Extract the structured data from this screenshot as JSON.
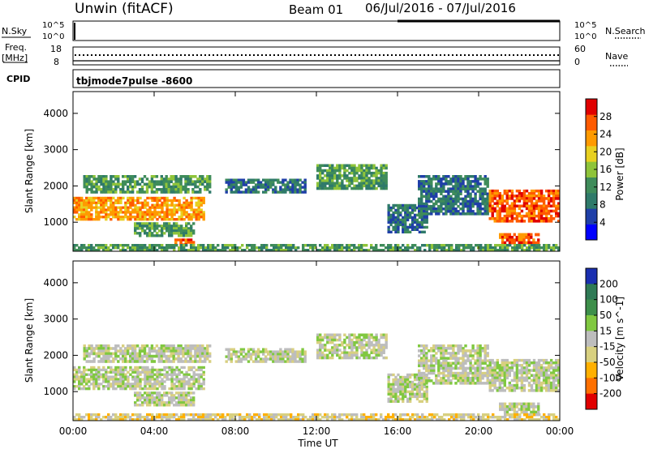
{
  "header": {
    "station": "Unwin (fitACF)",
    "beam": "Beam 01",
    "date_range": "06/Jul/2016 - 07/Jul/2016"
  },
  "left_labels": {
    "nsky": "N.Sky",
    "freq_line1": "Freq.",
    "freq_line2": "[MHz]",
    "cpid": "CPID"
  },
  "right_labels": {
    "nsearch": "N.Search",
    "nave": "Nave"
  },
  "cpid_value": "tbjmode7pulse -8600",
  "noise_panel": {
    "left_ticks": [
      "10^5",
      "10^0"
    ],
    "right_ticks": [
      "10^5",
      "10^0"
    ]
  },
  "freq_panel": {
    "left_ticks": [
      "18",
      "8"
    ],
    "right_ticks": [
      "60",
      "0"
    ]
  },
  "colors": {
    "power_scale": [
      "#0000ff",
      "#1f3fa8",
      "#2f7a6a",
      "#3f8c5a",
      "#8fc43a",
      "#e8d020",
      "#ff9a00",
      "#ff5a00",
      "#e00000"
    ],
    "velocity_scale": [
      "#1a2fb0",
      "#2f7a55",
      "#3d8f4a",
      "#80c840",
      "#bdbdbd",
      "#d8d080",
      "#ffb000",
      "#ff7000",
      "#e00000"
    ]
  },
  "chart_data": [
    {
      "type": "heatmap",
      "title": "",
      "xlabel": "Time UT",
      "ylabel": "Slant Range [km]",
      "x_ticks": [
        "00:00",
        "04:00",
        "08:00",
        "12:00",
        "16:00",
        "20:00",
        "00:00"
      ],
      "xlim_hours": [
        0,
        24
      ],
      "y_ticks": [
        "1000",
        "2000",
        "3000",
        "4000"
      ],
      "ylim": [
        200,
        4600
      ],
      "colorbar": {
        "label": "Power [dB]",
        "ticks": [
          "4",
          "8",
          "12",
          "16",
          "20",
          "24",
          "28"
        ],
        "range": [
          0,
          32
        ]
      },
      "echo_regions": [
        {
          "t0": 0.0,
          "t1": 6.5,
          "r0": 1050,
          "r1": 1700,
          "level": 24
        },
        {
          "t0": 0.5,
          "t1": 6.8,
          "r0": 1800,
          "r1": 2300,
          "level": 12
        },
        {
          "t0": 3.0,
          "t1": 6.0,
          "r0": 600,
          "r1": 1000,
          "level": 14
        },
        {
          "t0": 5.0,
          "t1": 6.0,
          "r0": 350,
          "r1": 550,
          "level": 26
        },
        {
          "t0": 7.5,
          "t1": 11.5,
          "r0": 1800,
          "r1": 2200,
          "level": 10
        },
        {
          "t0": 12.0,
          "t1": 15.5,
          "r0": 1900,
          "r1": 2600,
          "level": 12
        },
        {
          "t0": 15.5,
          "t1": 17.5,
          "r0": 700,
          "r1": 1500,
          "level": 10
        },
        {
          "t0": 17.0,
          "t1": 20.5,
          "r0": 1200,
          "r1": 2300,
          "level": 9
        },
        {
          "t0": 20.5,
          "t1": 24.0,
          "r0": 1000,
          "r1": 1900,
          "level": 26
        },
        {
          "t0": 21.0,
          "t1": 23.0,
          "r0": 400,
          "r1": 700,
          "level": 27
        },
        {
          "t0": 0.0,
          "t1": 24.0,
          "r0": 200,
          "r1": 400,
          "level": 14
        }
      ]
    },
    {
      "type": "heatmap",
      "title": "",
      "xlabel": "Time UT",
      "ylabel": "Slant Range [km]",
      "x_ticks": [
        "00:00",
        "04:00",
        "08:00",
        "12:00",
        "16:00",
        "20:00",
        "00:00"
      ],
      "xlim_hours": [
        0,
        24
      ],
      "y_ticks": [
        "1000",
        "2000",
        "3000",
        "4000"
      ],
      "ylim": [
        200,
        4600
      ],
      "colorbar": {
        "label": "Velocity [m s^-1]",
        "ticks": [
          "200",
          "100",
          "50",
          "15",
          "-15",
          "-50",
          "-100",
          "-200"
        ],
        "range": [
          -250,
          250
        ]
      },
      "echo_regions": [
        {
          "t0": 0.0,
          "t1": 6.5,
          "r0": 1050,
          "r1": 1700,
          "level": 0
        },
        {
          "t0": 0.5,
          "t1": 6.8,
          "r0": 1800,
          "r1": 2300,
          "level": 0
        },
        {
          "t0": 3.0,
          "t1": 6.0,
          "r0": 600,
          "r1": 1000,
          "level": 0
        },
        {
          "t0": 7.5,
          "t1": 11.5,
          "r0": 1800,
          "r1": 2200,
          "level": 20
        },
        {
          "t0": 12.0,
          "t1": 15.5,
          "r0": 1900,
          "r1": 2600,
          "level": 30
        },
        {
          "t0": 15.5,
          "t1": 17.5,
          "r0": 700,
          "r1": 1500,
          "level": 0
        },
        {
          "t0": 17.0,
          "t1": 20.5,
          "r0": 1200,
          "r1": 2300,
          "level": 20
        },
        {
          "t0": 20.5,
          "t1": 24.0,
          "r0": 1000,
          "r1": 1900,
          "level": 0
        },
        {
          "t0": 21.0,
          "t1": 23.0,
          "r0": 400,
          "r1": 700,
          "level": 0
        },
        {
          "t0": 0.0,
          "t1": 24.0,
          "r0": 200,
          "r1": 400,
          "level": 40
        }
      ]
    }
  ]
}
